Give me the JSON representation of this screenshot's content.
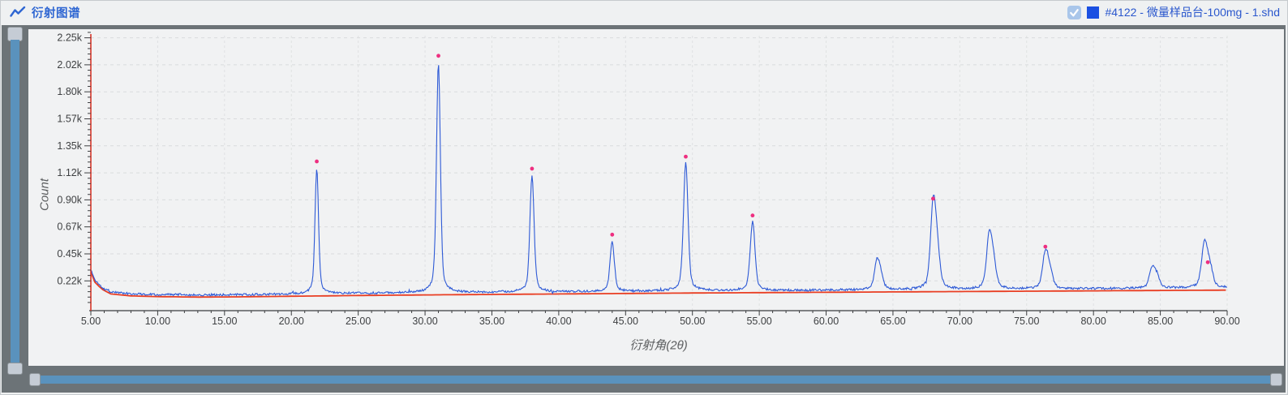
{
  "header": {
    "title": "衍射图谱",
    "icon": "line-chart-icon",
    "legend": {
      "checkbox_checked": true,
      "swatch_color": "#1b50e2",
      "label": "#4122 - 微量样品台-100mg - 1.shd"
    }
  },
  "chart_data": {
    "type": "line",
    "title": "衍射图谱",
    "xlabel": "衍射角(2θ)",
    "ylabel": "Count",
    "xlim": [
      5,
      90
    ],
    "ylim_counts": [
      0,
      2330
    ],
    "grid": "dashed",
    "legend_position": "top-right",
    "x_tick_values": [
      5,
      10,
      15,
      20,
      25,
      30,
      35,
      40,
      45,
      50,
      55,
      60,
      65,
      70,
      75,
      80,
      85,
      90
    ],
    "x_tick_labels": [
      "5.00",
      "10.00",
      "15.00",
      "20.00",
      "25.00",
      "30.00",
      "35.00",
      "40.00",
      "45.00",
      "50.00",
      "55.00",
      "60.00",
      "65.00",
      "70.00",
      "75.00",
      "80.00",
      "85.00",
      "90.00"
    ],
    "y_tick_values": [
      225,
      450,
      675,
      900,
      1125,
      1350,
      1575,
      1800,
      2025,
      2250
    ],
    "y_tick_labels": [
      "0.22k",
      "0.45k",
      "0.67k",
      "0.90k",
      "1.12k",
      "1.35k",
      "1.57k",
      "1.80k",
      "2.02k",
      "2.25k"
    ],
    "series": [
      {
        "name": "#4122 - 微量样品台-100mg - 1.shd",
        "color": "#2e5ad6",
        "role": "diffraction-trace"
      },
      {
        "name": "background-baseline",
        "color": "#e93e23",
        "role": "baseline"
      }
    ],
    "axis_colors": {
      "y_spine": "#d8372a",
      "x_spine": "#3b3d3f"
    },
    "marker_color": "#ee2f80",
    "peaks": [
      {
        "two_theta": 21.9,
        "apex_count": 1160,
        "marker_count": 1220
      },
      {
        "two_theta": 31.0,
        "apex_count": 2040,
        "marker_count": 2100
      },
      {
        "two_theta": 38.0,
        "apex_count": 1100,
        "marker_count": 1160
      },
      {
        "two_theta": 44.0,
        "apex_count": 550,
        "marker_count": 610
      },
      {
        "two_theta": 49.5,
        "apex_count": 1210,
        "marker_count": 1260
      },
      {
        "two_theta": 54.5,
        "apex_count": 720,
        "marker_count": 770
      },
      {
        "two_theta": 63.8,
        "apex_count": 380,
        "marker_count": null
      },
      {
        "two_theta": 68.0,
        "apex_count": 850,
        "marker_count": 910
      },
      {
        "two_theta": 72.2,
        "apex_count": 600,
        "marker_count": null
      },
      {
        "two_theta": 76.4,
        "apex_count": 460,
        "marker_count": 510
      },
      {
        "two_theta": 84.4,
        "apex_count": 340,
        "marker_count": null
      },
      {
        "two_theta": 88.3,
        "apex_count": 530,
        "marker_count": 380,
        "marker_two_theta": 88.55
      }
    ],
    "baseline_points": [
      [
        5,
        300
      ],
      [
        5.3,
        215
      ],
      [
        5.8,
        158
      ],
      [
        6.5,
        116
      ],
      [
        8,
        100
      ],
      [
        10,
        94
      ],
      [
        13,
        90
      ],
      [
        16,
        92
      ],
      [
        20,
        97
      ],
      [
        25,
        103
      ],
      [
        30,
        108
      ],
      [
        35,
        112
      ],
      [
        40,
        116
      ],
      [
        45,
        120
      ],
      [
        50,
        124
      ],
      [
        55,
        127
      ],
      [
        60,
        130
      ],
      [
        65,
        133
      ],
      [
        70,
        136
      ],
      [
        75,
        139
      ],
      [
        80,
        142
      ],
      [
        85,
        145
      ],
      [
        90,
        148
      ]
    ],
    "noise_counts": 7
  }
}
